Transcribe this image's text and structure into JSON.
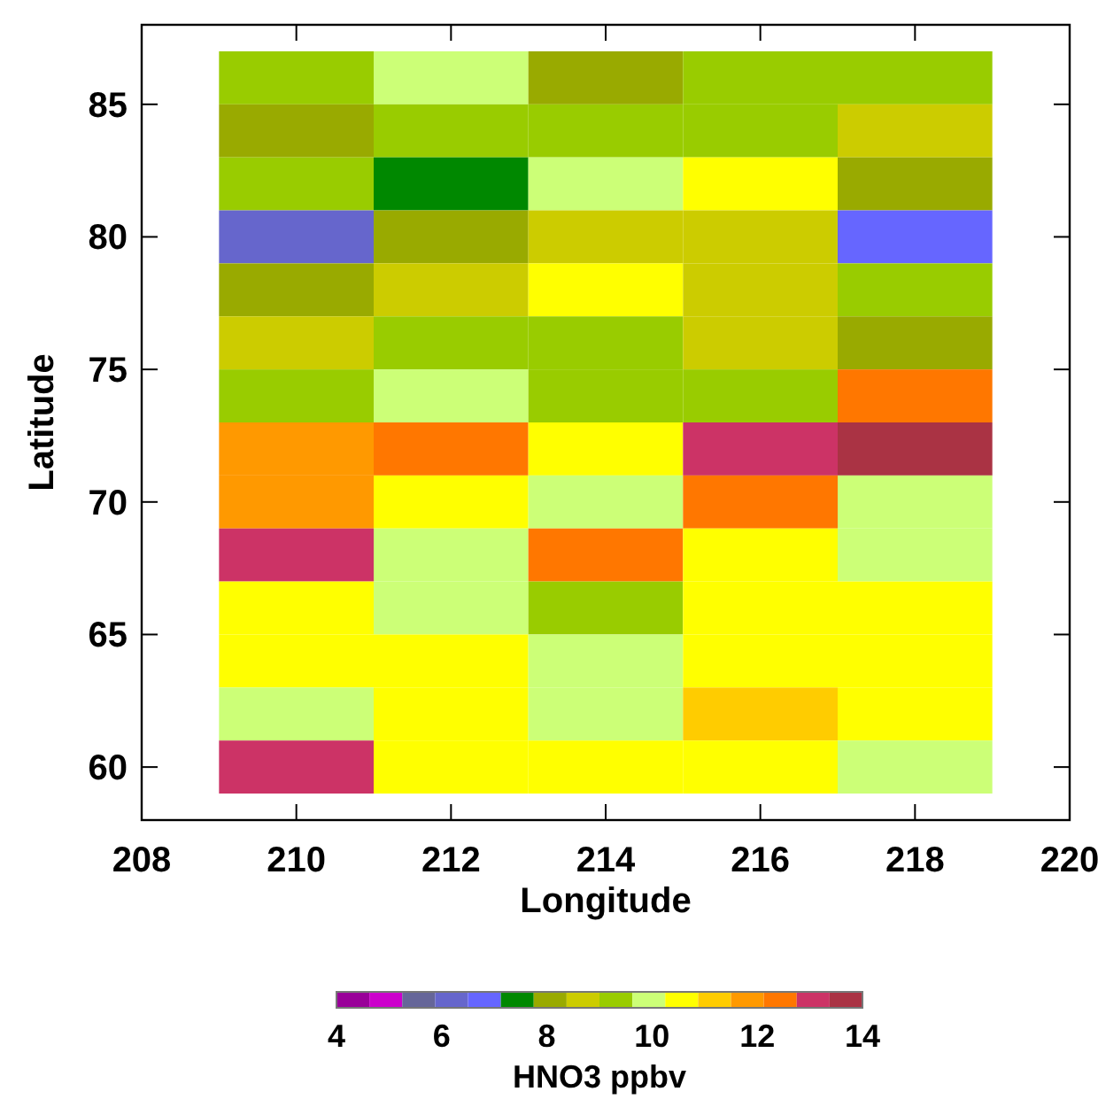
{
  "chart_data": {
    "type": "heatmap",
    "xlabel": "Longitude",
    "ylabel": "Latitude",
    "clabel": "HNO3 ppbv",
    "x": [
      210,
      212,
      214,
      216,
      218
    ],
    "y": [
      86,
      84,
      82,
      80,
      78,
      76,
      74,
      72,
      70,
      68,
      66,
      64,
      62,
      60
    ],
    "xlim": [
      208,
      220
    ],
    "xticks": [
      208,
      210,
      212,
      214,
      216,
      218,
      220
    ],
    "ylim": [
      58,
      88
    ],
    "yticks": [
      60,
      65,
      70,
      75,
      80,
      85
    ],
    "clim": [
      4,
      14
    ],
    "cticks": [
      4,
      6,
      8,
      10,
      12,
      14
    ],
    "colors": [
      "#990099",
      "#cc00cc",
      "#666699",
      "#6666cc",
      "#6666ff",
      "#008800",
      "#99aa00",
      "#cccc00",
      "#99cc00",
      "#ccff77",
      "#ffff00",
      "#ffcc00",
      "#ff9900",
      "#ff7700",
      "#cc3366",
      "#aa3344"
    ],
    "cells": [
      [
        9.3,
        9.9,
        8.1,
        9.3,
        9.3
      ],
      [
        8.1,
        9.3,
        9.3,
        9.3,
        8.7
      ],
      [
        9.3,
        7.4,
        9.9,
        10.6,
        8.1
      ],
      [
        6.2,
        8.1,
        8.7,
        8.7,
        6.8
      ],
      [
        8.1,
        8.7,
        10.6,
        8.7,
        9.3
      ],
      [
        8.7,
        9.3,
        9.3,
        8.7,
        8.1
      ],
      [
        9.3,
        9.9,
        9.3,
        9.3,
        12.4
      ],
      [
        11.8,
        12.4,
        10.6,
        13.1,
        13.7
      ],
      [
        11.8,
        10.6,
        9.9,
        12.4,
        9.9
      ],
      [
        13.1,
        9.9,
        12.4,
        10.6,
        9.9
      ],
      [
        10.6,
        9.9,
        9.3,
        10.6,
        10.6
      ],
      [
        10.6,
        10.6,
        9.9,
        10.6,
        10.6
      ],
      [
        9.9,
        10.6,
        9.9,
        11.2,
        10.6
      ],
      [
        13.1,
        10.6,
        10.6,
        10.6,
        9.9
      ]
    ]
  }
}
